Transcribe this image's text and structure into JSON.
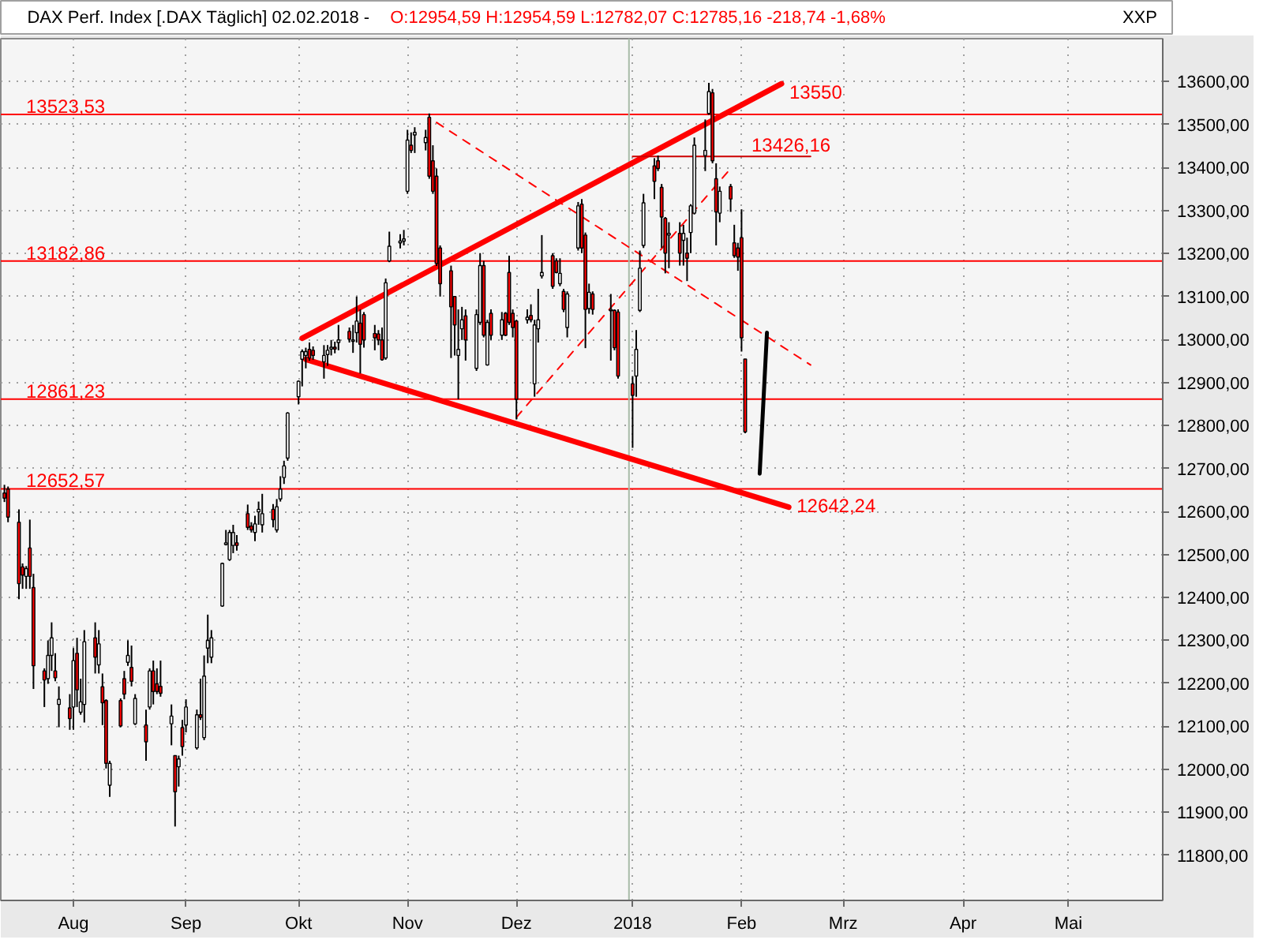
{
  "chart_data": {
    "type": "candlestick",
    "title": "DAX Perf. Index [.DAX Täglich] 02.02.2018 -",
    "subtitle": "O:12954,59 H:12954,59 L:12782,07 C:12785,16 -218,74 -1,68%",
    "annotations": [
      "XXP",
      {
        "text": "13550",
        "x": "2018-02-02",
        "y": 13550
      },
      {
        "text": "13426,16",
        "x": "2018-02-02",
        "y": 13426.16
      },
      {
        "text": "12642,24",
        "x": "2018-02-02",
        "y": 12642.24
      }
    ],
    "x": [
      "2017-07-13",
      "2017-07-14",
      "2017-07-17",
      "2017-07-18",
      "2017-07-19",
      "2017-07-20",
      "2017-07-21",
      "2017-07-24",
      "2017-07-25",
      "2017-07-26",
      "2017-07-27",
      "2017-07-28",
      "2017-07-31",
      "2017-08-01",
      "2017-08-02",
      "2017-08-03",
      "2017-08-04",
      "2017-08-07",
      "2017-08-08",
      "2017-08-09",
      "2017-08-10",
      "2017-08-11",
      "2017-08-14",
      "2017-08-15",
      "2017-08-16",
      "2017-08-17",
      "2017-08-18",
      "2017-08-21",
      "2017-08-22",
      "2017-08-23",
      "2017-08-24",
      "2017-08-25",
      "2017-08-28",
      "2017-08-29",
      "2017-08-30",
      "2017-08-31",
      "2017-09-01",
      "2017-09-04",
      "2017-09-05",
      "2017-09-06",
      "2017-09-07",
      "2017-09-08",
      "2017-09-11",
      "2017-09-12",
      "2017-09-13",
      "2017-09-14",
      "2017-09-15",
      "2017-09-18",
      "2017-09-19",
      "2017-09-20",
      "2017-09-21",
      "2017-09-22",
      "2017-09-25",
      "2017-09-26",
      "2017-09-27",
      "2017-09-28",
      "2017-09-29",
      "2017-10-02",
      "2017-10-03",
      "2017-10-04",
      "2017-10-05",
      "2017-10-06",
      "2017-10-09",
      "2017-10-10",
      "2017-10-11",
      "2017-10-12",
      "2017-10-13",
      "2017-10-16",
      "2017-10-17",
      "2017-10-18",
      "2017-10-19",
      "2017-10-20",
      "2017-10-23",
      "2017-10-24",
      "2017-10-25",
      "2017-10-26",
      "2017-10-27",
      "2017-10-30",
      "2017-10-31",
      "2017-11-01",
      "2017-11-02",
      "2017-11-03",
      "2017-11-06",
      "2017-11-07",
      "2017-11-08",
      "2017-11-09",
      "2017-11-10",
      "2017-11-13",
      "2017-11-14",
      "2017-11-15",
      "2017-11-16",
      "2017-11-17",
      "2017-11-20",
      "2017-11-21",
      "2017-11-22",
      "2017-11-23",
      "2017-11-24",
      "2017-11-27",
      "2017-11-28",
      "2017-11-29",
      "2017-11-30",
      "2017-12-01",
      "2017-12-04",
      "2017-12-05",
      "2017-12-06",
      "2017-12-07",
      "2017-12-08",
      "2017-12-11",
      "2017-12-12",
      "2017-12-13",
      "2017-12-14",
      "2017-12-15",
      "2017-12-18",
      "2017-12-19",
      "2017-12-20",
      "2017-12-21",
      "2017-12-22",
      "2017-12-27",
      "2017-12-28",
      "2017-12-29",
      "2018-01-02",
      "2018-01-03",
      "2018-01-04",
      "2018-01-05",
      "2018-01-08",
      "2018-01-09",
      "2018-01-10",
      "2018-01-11",
      "2018-01-12",
      "2018-01-15",
      "2018-01-16",
      "2018-01-17",
      "2018-01-18",
      "2018-01-19",
      "2018-01-22",
      "2018-01-23",
      "2018-01-24",
      "2018-01-25",
      "2018-01-26",
      "2018-01-29",
      "2018-01-30",
      "2018-01-31",
      "2018-02-01",
      "2018-02-02"
    ],
    "ohlc": [
      [
        12643,
        12662,
        12622,
        12631
      ],
      [
        12652,
        12658,
        12575,
        12587
      ],
      [
        12575,
        12605,
        12396,
        12432
      ],
      [
        12471,
        12479,
        12420,
        12452
      ],
      [
        12449,
        12473,
        12420,
        12467
      ],
      [
        12515,
        12581,
        12420,
        12449
      ],
      [
        12423,
        12455,
        12187,
        12241
      ],
      [
        12229,
        12235,
        12145,
        12208
      ],
      [
        12211,
        12300,
        12199,
        12265
      ],
      [
        12265,
        12342,
        12229,
        12306
      ],
      [
        12229,
        12270,
        12205,
        12213
      ],
      [
        12151,
        12193,
        12098,
        12163
      ],
      [
        12143,
        12175,
        12092,
        12118
      ],
      [
        12145,
        12282,
        12092,
        12253
      ],
      [
        12270,
        12306,
        12145,
        12185
      ],
      [
        12133,
        12211,
        12127,
        12157
      ],
      [
        12151,
        12324,
        12109,
        12297
      ],
      [
        12306,
        12342,
        12223,
        12261
      ],
      [
        12243,
        12324,
        12223,
        12292
      ],
      [
        12192,
        12223,
        12103,
        12155
      ],
      [
        12160,
        12163,
        12002,
        12014
      ],
      [
        11963,
        12020,
        11936,
        12014
      ],
      [
        12160,
        12165,
        12098,
        12101
      ],
      [
        12211,
        12229,
        12163,
        12175
      ],
      [
        12249,
        12300,
        12241,
        12265
      ],
      [
        12237,
        12288,
        12193,
        12205
      ],
      [
        12106,
        12175,
        12103,
        12165
      ],
      [
        12103,
        12139,
        12020,
        12064
      ],
      [
        12145,
        12235,
        12139,
        12229
      ],
      [
        12229,
        12253,
        12151,
        12181
      ],
      [
        12199,
        12235,
        12175,
        12181
      ],
      [
        12193,
        12253,
        12169,
        12177
      ],
      [
        12106,
        12151,
        12056,
        12124
      ],
      [
        12032,
        12032,
        11867,
        11948
      ],
      [
        12006,
        12032,
        11960,
        12024
      ],
      [
        12097,
        12115,
        12032,
        12053
      ],
      [
        12103,
        12163,
        12086,
        12145
      ],
      [
        12050,
        12139,
        12046,
        12127
      ],
      [
        12127,
        12211,
        12115,
        12121
      ],
      [
        12074,
        12265,
        12068,
        12217
      ],
      [
        12282,
        12360,
        12247,
        12300
      ],
      [
        12261,
        12324,
        12247,
        12306
      ],
      [
        12380,
        12481,
        12378,
        12479
      ],
      [
        12523,
        12557,
        12521,
        12527
      ],
      [
        12488,
        12557,
        12485,
        12551
      ],
      [
        12521,
        12569,
        12503,
        12551
      ],
      [
        12527,
        12545,
        12509,
        12521
      ],
      [
        12595,
        12616,
        12557,
        12563
      ],
      [
        12566,
        12575,
        12551,
        12557
      ],
      [
        12551,
        12590,
        12531,
        12571
      ],
      [
        12599,
        12623,
        12569,
        12605
      ],
      [
        12569,
        12641,
        12551,
        12595
      ],
      [
        12605,
        12617,
        12563,
        12581
      ],
      [
        12557,
        12629,
        12551,
        12611
      ],
      [
        12629,
        12682,
        12623,
        12652
      ],
      [
        12679,
        12718,
        12664,
        12706
      ],
      [
        12724,
        12831,
        12718,
        12829
      ],
      [
        12867,
        12905,
        12849,
        12903
      ],
      [
        12954,
        12977,
        12891,
        12972
      ],
      [
        12963,
        12981,
        12933,
        12972
      ],
      [
        12977,
        12993,
        12951,
        12957
      ],
      [
        12975,
        12984,
        12953,
        12963
      ],
      [
        12948,
        12987,
        12909,
        12963
      ],
      [
        12965,
        12987,
        12939,
        12975
      ],
      [
        12978,
        12999,
        12963,
        12982
      ],
      [
        12982,
        12995,
        12968,
        12978
      ],
      [
        12993,
        13034,
        12975,
        12999
      ],
      [
        13019,
        13028,
        12993,
        13001
      ],
      [
        12996,
        13034,
        12969,
        12999
      ],
      [
        13016,
        13100,
        12993,
        13043
      ],
      [
        13038,
        13070,
        12921,
        12989
      ],
      [
        13058,
        13064,
        12981,
        12999
      ],
      [
        13014,
        13034,
        12975,
        13004
      ],
      [
        13013,
        13022,
        12987,
        12999
      ],
      [
        12999,
        13028,
        12951,
        12953
      ],
      [
        12957,
        13142,
        12953,
        13132
      ],
      [
        13183,
        13251,
        13180,
        13217
      ],
      [
        13225,
        13245,
        13212,
        13229
      ],
      [
        13229,
        13255,
        13219,
        13234
      ],
      [
        13345,
        13488,
        13339,
        13464
      ],
      [
        13452,
        13482,
        13434,
        13440
      ],
      [
        13476,
        13494,
        13434,
        13482
      ],
      [
        13458,
        13488,
        13440,
        13470
      ],
      [
        13517,
        13526,
        13374,
        13380
      ],
      [
        13416,
        13452,
        13339,
        13345
      ],
      [
        13380,
        13398,
        13171,
        13177
      ],
      [
        13213,
        13219,
        13100,
        13130
      ],
      [
        13160,
        13172,
        12957,
        13076
      ],
      [
        13100,
        13100,
        12963,
        13034
      ],
      [
        12963,
        13070,
        12861,
        12977
      ],
      [
        13025,
        13076,
        12999,
        13046
      ],
      [
        13055,
        13070,
        12951,
        12999
      ],
      [
        12933,
        13070,
        12927,
        13058
      ],
      [
        13040,
        13201,
        13034,
        13172
      ],
      [
        13172,
        13183,
        13005,
        13010
      ],
      [
        12941,
        13046,
        12939,
        13040
      ],
      [
        13061,
        13070,
        12999,
        13010
      ],
      [
        13010,
        13064,
        12999,
        13046
      ],
      [
        13061,
        13064,
        13008,
        13010
      ],
      [
        13156,
        13195,
        13034,
        13040
      ],
      [
        13061,
        13070,
        13005,
        13028
      ],
      [
        13043,
        13046,
        12814,
        12861
      ],
      [
        13046,
        13070,
        13037,
        13052
      ],
      [
        13056,
        13082,
        13040,
        13046
      ],
      [
        12897,
        13046,
        12867,
        13034
      ],
      [
        13025,
        13118,
        12993,
        13046
      ],
      [
        13148,
        13243,
        13142,
        13156
      ],
      [
        13195,
        13201,
        13118,
        13124
      ],
      [
        13183,
        13189,
        13154,
        13156
      ],
      [
        13130,
        13189,
        13124,
        13154
      ],
      [
        13112,
        13118,
        13064,
        13070
      ],
      [
        13028,
        13112,
        13005,
        13106
      ],
      [
        13213,
        13320,
        13207,
        13311
      ],
      [
        13315,
        13327,
        13201,
        13213
      ],
      [
        13243,
        13249,
        12980,
        13070
      ],
      [
        13072,
        13130,
        13060,
        13110
      ],
      [
        13106,
        13112,
        13058,
        13070
      ],
      [
        13067,
        13106,
        12951,
        13070
      ],
      [
        13068,
        13070,
        12975,
        12981
      ],
      [
        13064,
        13070,
        12909,
        12915
      ],
      [
        12897,
        12915,
        12748,
        12870
      ],
      [
        12915,
        13022,
        12867,
        12977
      ],
      [
        13068,
        13207,
        13064,
        13166
      ],
      [
        13219,
        13339,
        13213,
        13318
      ],
      [
        13404,
        13422,
        13327,
        13368
      ],
      [
        13416,
        13428,
        13392,
        13398
      ],
      [
        13354,
        13362,
        13213,
        13285
      ],
      [
        13282,
        13285,
        13154,
        13201
      ],
      [
        13243,
        13273,
        13166,
        13247
      ],
      [
        13247,
        13273,
        13172,
        13201
      ],
      [
        13231,
        13267,
        13172,
        13247
      ],
      [
        13201,
        13237,
        13136,
        13189
      ],
      [
        13249,
        13315,
        13201,
        13311
      ],
      [
        13294,
        13470,
        13291,
        13452
      ],
      [
        13428,
        13512,
        13392,
        13440
      ],
      [
        13526,
        13597,
        13523,
        13577
      ],
      [
        13574,
        13583,
        13410,
        13416
      ],
      [
        13374,
        13410,
        13219,
        13297
      ],
      [
        13294,
        13356,
        13273,
        13345
      ],
      [
        13356,
        13362,
        13297,
        13327
      ],
      [
        13225,
        13267,
        13190,
        13195
      ],
      [
        13213,
        13225,
        13160,
        13192
      ],
      [
        13237,
        13303,
        12972,
        13004
      ],
      [
        12954.59,
        12954.59,
        12782.07,
        12785.16
      ]
    ],
    "colors": [
      "#ff0000",
      "#ff0000",
      "#ff0000",
      "#ff0000",
      "#ffffff",
      "#ff0000",
      "#ff0000",
      "#ff0000",
      "#ffffff",
      "#ffffff",
      "#ff0000",
      "#ffffff",
      "#ff0000",
      "#ffffff",
      "#ff0000",
      "#ffffff",
      "#ffffff",
      "#ff0000",
      "#ffffff",
      "#ff0000",
      "#ff0000",
      "#ffffff",
      "#ff0000",
      "#ff0000",
      "#ffffff",
      "#ff0000",
      "#ffffff",
      "#ff0000",
      "#ffffff",
      "#ff0000",
      "#ff0000",
      "#ff0000",
      "#ffffff",
      "#ff0000",
      "#ffffff",
      "#ff0000",
      "#ffffff",
      "#ffffff",
      "#ff0000",
      "#ffffff",
      "#ffffff",
      "#ffffff",
      "#ffffff",
      "#ffffff",
      "#ffffff",
      "#ffffff",
      "#ff0000",
      "#ff0000",
      "#ff0000",
      "#ffffff",
      "#ffffff",
      "#ffffff",
      "#ff0000",
      "#ffffff",
      "#ffffff",
      "#ffffff",
      "#ffffff",
      "#ffffff",
      "#ffffff",
      "#ffffff",
      "#ff0000",
      "#ff0000",
      "#ffffff",
      "#ffffff",
      "#ffffff",
      "#ff0000",
      "#ffffff",
      "#ff0000",
      "#ffffff",
      "#ffffff",
      "#ff0000",
      "#ff0000",
      "#ff0000",
      "#ff0000",
      "#ff0000",
      "#ffffff",
      "#ffffff",
      "#ffffff",
      "#ffffff",
      "#ffffff",
      "#ff0000",
      "#ffffff",
      "#ffffff",
      "#ff0000",
      "#ff0000",
      "#ff0000",
      "#ff0000",
      "#ff0000",
      "#ff0000",
      "#ffffff",
      "#ffffff",
      "#ff0000",
      "#ffffff",
      "#ffffff",
      "#ff0000",
      "#ffffff",
      "#ff0000",
      "#ffffff",
      "#ff0000",
      "#ff0000",
      "#ff0000",
      "#ff0000",
      "#ffffff",
      "#ff0000",
      "#ffffff",
      "#ffffff",
      "#ffffff",
      "#ff0000",
      "#ff0000",
      "#ffffff",
      "#ff0000",
      "#ffffff",
      "#ffffff",
      "#ff0000",
      "#ff0000",
      "#ffffff",
      "#ff0000",
      "#ffffff",
      "#ff0000",
      "#ff0000",
      "#ff0000",
      "#ffffff",
      "#ffffff",
      "#ffffff",
      "#ff0000",
      "#ff0000",
      "#ff0000",
      "#ff0000",
      "#ffffff",
      "#ff0000",
      "#ffffff",
      "#ff0000",
      "#ffffff",
      "#ffffff",
      "#ffffff",
      "#ffffff",
      "#ff0000",
      "#ff0000",
      "#ffffff",
      "#ff0000",
      "#ff0000",
      "#ff0000",
      "#ff0000",
      "#ff0000"
    ],
    "series": [
      {
        "type": "line",
        "color": "#ff0000",
        "x": [
          "2017-10-03",
          "2018-02-12"
        ],
        "values": [
          13003,
          13595
        ]
      },
      {
        "type": "line",
        "color": "#ff0000",
        "x": [
          "2017-10-04",
          "2018-02-14"
        ],
        "values": [
          12954,
          12610
        ]
      },
      {
        "type": "line",
        "color": "#ff0000",
        "line_style": "dashed",
        "x": [
          "2017-11-09",
          "2018-02-20"
        ],
        "values": [
          13505,
          12941
        ]
      },
      {
        "type": "line",
        "color": "#ff0000",
        "line_style": "dashed",
        "x": [
          "2017-12-01",
          "2018-01-29"
        ],
        "values": [
          12819,
          13398
        ]
      },
      {
        "type": "line",
        "color": "#cc0000",
        "x": [
          "2018-01-02",
          "2018-02-20"
        ],
        "values": [
          13426.16,
          13426.16
        ]
      },
      {
        "type": "line",
        "color": "#000000",
        "x": [
          "2018-02-06",
          "2018-02-08"
        ],
        "values": [
          12688,
          13016
        ]
      }
    ],
    "ref_lines": [
      {
        "axis": "y",
        "value": 13523.53,
        "label": "13523,53",
        "color": "#ff0000"
      },
      {
        "axis": "y",
        "value": 13182.86,
        "label": "13182,86",
        "color": "#ff0000"
      },
      {
        "axis": "y",
        "value": 12861.23,
        "label": "12861,23",
        "color": "#ff0000"
      },
      {
        "axis": "y",
        "value": 12652.57,
        "label": "12652,57",
        "color": "#ff0000"
      },
      {
        "axis": "x",
        "value": "2018-01-01",
        "color": "#a8bca8"
      }
    ],
    "xlim": [
      "2017-07-12",
      "2018-05-28"
    ],
    "xticks": [
      {
        "value": "2017-08-01",
        "label": "Aug"
      },
      {
        "value": "2017-09-01",
        "label": "Sep"
      },
      {
        "value": "2017-10-02",
        "label": "Okt"
      },
      {
        "value": "2017-11-01",
        "label": "Nov"
      },
      {
        "value": "2017-12-01",
        "label": "Dez"
      },
      {
        "value": "2018-01-02",
        "label": "2018"
      },
      {
        "value": "2018-02-01",
        "label": "Feb"
      },
      {
        "value": "2018-03-01",
        "label": "Mrz"
      },
      {
        "value": "2018-04-03",
        "label": "Apr"
      },
      {
        "value": "2018-05-02",
        "label": "Mai"
      }
    ],
    "ylim": [
      11695,
      13700
    ],
    "yticks": [
      {
        "value": 11800,
        "label": "11800,00"
      },
      {
        "value": 11900,
        "label": "11900,00"
      },
      {
        "value": 12000,
        "label": "12000,00"
      },
      {
        "value": 12100,
        "label": "12100,00"
      },
      {
        "value": 12200,
        "label": "12200,00"
      },
      {
        "value": 12300,
        "label": "12300,00"
      },
      {
        "value": 12400,
        "label": "12400,00"
      },
      {
        "value": 12500,
        "label": "12500,00"
      },
      {
        "value": 12600,
        "label": "12600,00"
      },
      {
        "value": 12700,
        "label": "12700,00"
      },
      {
        "value": 12800,
        "label": "12800,00"
      },
      {
        "value": 12900,
        "label": "12900,00"
      },
      {
        "value": 13000,
        "label": "13000,00"
      },
      {
        "value": 13100,
        "label": "13100,00"
      },
      {
        "value": 13200,
        "label": "13200,00"
      },
      {
        "value": 13300,
        "label": "13300,00"
      },
      {
        "value": 13400,
        "label": "13400,00"
      },
      {
        "value": 13500,
        "label": "13500,00"
      },
      {
        "value": 13600,
        "label": "13600,00"
      }
    ],
    "grid": true
  }
}
